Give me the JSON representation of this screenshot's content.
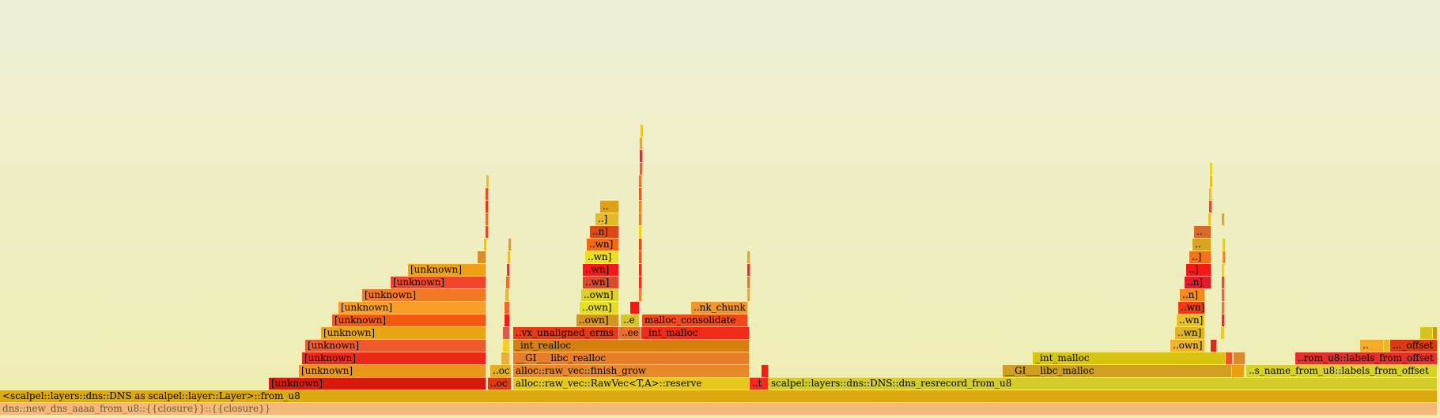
{
  "chart_data": {
    "type": "flamegraph",
    "total_samples": 1821,
    "frames": [
      {
        "label": "dns::new_dns_aaaa_from_u8::{{closure}}::{{closure}}",
        "start": 0,
        "width": 1818,
        "depth": 0,
        "color": "#f4b87a"
      },
      {
        "label": "<scalpel::layers::dns::DNS as scalpel::layer::Layer>::from_u8",
        "start": 0,
        "width": 1818,
        "depth": 1,
        "color": "#dcaa0e"
      },
      {
        "label": "[unknown]",
        "start": 340,
        "width": 275,
        "depth": 2,
        "color": "#d61a0e"
      },
      {
        "label": "..oc",
        "start": 617,
        "width": 30,
        "depth": 2,
        "color": "#e03a12"
      },
      {
        "label": "alloc::raw_vec::RawVec<T,A>::reserve",
        "start": 649,
        "width": 299,
        "depth": 2,
        "color": "#e4c81c"
      },
      {
        "label": "..t",
        "start": 948,
        "width": 24,
        "depth": 2,
        "color": "#f42a1a"
      },
      {
        "label": "scalpel::layers::dns::DNS::dns_resrecord_from_u8",
        "start": 972,
        "width": 846,
        "depth": 2,
        "color": "#d4cc2a"
      },
      {
        "label": "[unknown]",
        "start": 378,
        "width": 237,
        "depth": 3,
        "color": "#e8991a"
      },
      {
        "label": "..oc",
        "start": 620,
        "width": 27,
        "depth": 3,
        "color": "#e4b020"
      },
      {
        "label": "alloc::raw_vec::finish_grow",
        "start": 649,
        "width": 299,
        "depth": 3,
        "color": "#e8882a"
      },
      {
        "label": "",
        "start": 963,
        "width": 9,
        "depth": 3,
        "color": "#f21e1a"
      },
      {
        "label": "__GI___libc_malloc",
        "start": 1268,
        "width": 290,
        "depth": 3,
        "color": "#cfa020"
      },
      {
        "label": "",
        "start": 1558,
        "width": 16,
        "depth": 3,
        "color": "#e8a010"
      },
      {
        "label": "..s_name_from_u8::labels_from_offset",
        "start": 1576,
        "width": 242,
        "depth": 3,
        "color": "#d8d226"
      },
      {
        "label": "[unknown]",
        "start": 382,
        "width": 233,
        "depth": 4,
        "color": "#ee2818"
      },
      {
        "label": "",
        "start": 634,
        "width": 11,
        "depth": 4,
        "color": "#e8b038"
      },
      {
        "label": "__GI___libc_realloc",
        "start": 649,
        "width": 299,
        "depth": 4,
        "color": "#e87e2c"
      },
      {
        "label": "_int_malloc",
        "start": 1306,
        "width": 244,
        "depth": 4,
        "color": "#d6c410"
      },
      {
        "label": "",
        "start": 1550,
        "width": 9,
        "depth": 4,
        "color": "#f05222"
      },
      {
        "label": "",
        "start": 1560,
        "width": 15,
        "depth": 4,
        "color": "#d88a2c"
      },
      {
        "label": "..rom_u8::labels_from_offset",
        "start": 1638,
        "width": 180,
        "depth": 4,
        "color": "#e4302a"
      },
      {
        "label": "[unknown]",
        "start": 386,
        "width": 229,
        "depth": 5,
        "color": "#ec5a2e"
      },
      {
        "label": "",
        "start": 636,
        "width": 9,
        "depth": 5,
        "color": "#f0d020"
      },
      {
        "label": "_int_realloc",
        "start": 649,
        "width": 299,
        "depth": 5,
        "color": "#d48010"
      },
      {
        "label": "..own]",
        "start": 1480,
        "width": 44,
        "depth": 5,
        "color": "#f0b428"
      },
      {
        "label": "",
        "start": 1531,
        "width": 8,
        "depth": 5,
        "color": "#e02818"
      },
      {
        "label": "..",
        "start": 1720,
        "width": 30,
        "depth": 5,
        "color": "#f4ac28"
      },
      {
        "label": "",
        "start": 1750,
        "width": 8,
        "depth": 5,
        "color": "#e0be20"
      },
      {
        "label": "..._offset",
        "start": 1758,
        "width": 60,
        "depth": 5,
        "color": "#da3a10"
      },
      {
        "label": "[unknown]",
        "start": 406,
        "width": 209,
        "depth": 6,
        "color": "#e6a812"
      },
      {
        "label": "",
        "start": 636,
        "width": 9,
        "depth": 6,
        "color": "#d85e4a"
      },
      {
        "label": "..vx_unaligned_erms",
        "start": 649,
        "width": 134,
        "depth": 6,
        "color": "#e83a14"
      },
      {
        "label": "..ee",
        "start": 783,
        "width": 28,
        "depth": 6,
        "color": "#ec6e2a"
      },
      {
        "label": "_int_malloc",
        "start": 811,
        "width": 137,
        "depth": 6,
        "color": "#f22a1a"
      },
      {
        "label": "..wn]",
        "start": 1486,
        "width": 38,
        "depth": 6,
        "color": "#e0b422"
      },
      {
        "label": "",
        "start": 1544,
        "width": 5,
        "depth": 6,
        "color": "#ecc82c"
      },
      {
        "label": "",
        "start": 1796,
        "width": 16,
        "depth": 6,
        "color": "#d4c41c"
      },
      {
        "label": "",
        "start": 1812,
        "width": 6,
        "depth": 6,
        "color": "#c89a10"
      },
      {
        "label": "[unknown]",
        "start": 420,
        "width": 195,
        "depth": 7,
        "color": "#f45a12"
      },
      {
        "label": "",
        "start": 638,
        "width": 7,
        "depth": 7,
        "color": "#f41a1a"
      },
      {
        "label": "..own]",
        "start": 729,
        "width": 54,
        "depth": 7,
        "color": "#d69420"
      },
      {
        "label": "..e",
        "start": 785,
        "width": 24,
        "depth": 7,
        "color": "#d6c42c"
      },
      {
        "label": "malloc_consolidate",
        "start": 812,
        "width": 134,
        "depth": 7,
        "color": "#ee4a1c"
      },
      {
        "label": "..wn]",
        "start": 1488,
        "width": 36,
        "depth": 7,
        "color": "#e8c224"
      },
      {
        "label": "",
        "start": 1545,
        "width": 4,
        "depth": 7,
        "color": "#f02a1a"
      },
      {
        "label": "[unknown]",
        "start": 428,
        "width": 187,
        "depth": 8,
        "color": "#f8a026"
      },
      {
        "label": "",
        "start": 638,
        "width": 7,
        "depth": 8,
        "color": "#f06a24"
      },
      {
        "label": "..own]",
        "start": 733,
        "width": 50,
        "depth": 8,
        "color": "#e6de24"
      },
      {
        "label": "",
        "start": 797,
        "width": 12,
        "depth": 8,
        "color": "#f21a12"
      },
      {
        "label": "..nk_chunk",
        "start": 874,
        "width": 72,
        "depth": 8,
        "color": "#f0962c"
      },
      {
        "label": "..wn]",
        "start": 1490,
        "width": 34,
        "depth": 8,
        "color": "#ec3c14"
      },
      {
        "label": "",
        "start": 1545,
        "width": 4,
        "depth": 8,
        "color": "#e67a2a"
      },
      {
        "label": "[unknown]",
        "start": 458,
        "width": 157,
        "depth": 9,
        "color": "#f47a22"
      },
      {
        "label": "",
        "start": 639,
        "width": 5,
        "depth": 9,
        "color": "#e8b832"
      },
      {
        "label": "..own]",
        "start": 735,
        "width": 48,
        "depth": 9,
        "color": "#dcd024"
      },
      {
        "label": "",
        "start": 808,
        "width": 3,
        "depth": 9,
        "color": "#f0802a"
      },
      {
        "label": "",
        "start": 945,
        "width": 3,
        "depth": 9,
        "color": "#e4aa2a"
      },
      {
        "label": "..n]",
        "start": 1492,
        "width": 32,
        "depth": 9,
        "color": "#f48a1a"
      },
      {
        "label": "",
        "start": 1545,
        "width": 4,
        "depth": 9,
        "color": "#e86a2a"
      },
      {
        "label": "[unknown]",
        "start": 494,
        "width": 121,
        "depth": 10,
        "color": "#f0462c"
      },
      {
        "label": "",
        "start": 640,
        "width": 5,
        "depth": 10,
        "color": "#e67226"
      },
      {
        "label": "..wn]",
        "start": 737,
        "width": 46,
        "depth": 10,
        "color": "#d84a2a"
      },
      {
        "label": "",
        "start": 808,
        "width": 3,
        "depth": 10,
        "color": "#f42a1a"
      },
      {
        "label": "",
        "start": 945,
        "width": 3,
        "depth": 10,
        "color": "#e47a26"
      },
      {
        "label": "..n]",
        "start": 1498,
        "width": 34,
        "depth": 10,
        "color": "#e01c2a"
      },
      {
        "label": "",
        "start": 1545,
        "width": 4,
        "depth": 10,
        "color": "#e4501a"
      },
      {
        "label": "[unknown]",
        "start": 516,
        "width": 99,
        "depth": 11,
        "color": "#f0a014"
      },
      {
        "label": "",
        "start": 641,
        "width": 4,
        "depth": 11,
        "color": "#e4382a"
      },
      {
        "label": "..wn]",
        "start": 737,
        "width": 46,
        "depth": 11,
        "color": "#f41a1a"
      },
      {
        "label": "",
        "start": 808,
        "width": 3,
        "depth": 11,
        "color": "#e2301a"
      },
      {
        "label": "",
        "start": 945,
        "width": 3,
        "depth": 11,
        "color": "#f02a1a"
      },
      {
        "label": "..]",
        "start": 1500,
        "width": 32,
        "depth": 11,
        "color": "#f21a18"
      },
      {
        "label": "",
        "start": 1545,
        "width": 4,
        "depth": 11,
        "color": "#f0d020"
      },
      {
        "label": "",
        "start": 604,
        "width": 11,
        "depth": 12,
        "color": "#d88e2a"
      },
      {
        "label": "",
        "start": 642,
        "width": 3,
        "depth": 12,
        "color": "#e8c032"
      },
      {
        "label": "..wn]",
        "start": 740,
        "width": 43,
        "depth": 12,
        "color": "#e8e024"
      },
      {
        "label": "",
        "start": 808,
        "width": 3,
        "depth": 12,
        "color": "#e05a1a"
      },
      {
        "label": "",
        "start": 945,
        "width": 3,
        "depth": 12,
        "color": "#e0a82a"
      },
      {
        "label": "..]",
        "start": 1504,
        "width": 28,
        "depth": 12,
        "color": "#f2741a"
      },
      {
        "label": "",
        "start": 1546,
        "width": 3,
        "depth": 12,
        "color": "#f08a2a"
      },
      {
        "label": "",
        "start": 612,
        "width": 3,
        "depth": 13,
        "color": "#e4c82a"
      },
      {
        "label": "",
        "start": 643,
        "width": 2,
        "depth": 13,
        "color": "#e89a2a"
      },
      {
        "label": "..wn]",
        "start": 742,
        "width": 41,
        "depth": 13,
        "color": "#ee6a14"
      },
      {
        "label": "",
        "start": 808,
        "width": 3,
        "depth": 13,
        "color": "#e8481a"
      },
      {
        "label": "..",
        "start": 1508,
        "width": 24,
        "depth": 13,
        "color": "#d8a420"
      },
      {
        "label": "",
        "start": 1546,
        "width": 3,
        "depth": 13,
        "color": "#e2d02a"
      },
      {
        "label": "",
        "start": 614,
        "width": 2,
        "depth": 14,
        "color": "#e84a2a"
      },
      {
        "label": "..n]",
        "start": 746,
        "width": 37,
        "depth": 14,
        "color": "#dc4a14"
      },
      {
        "label": "",
        "start": 808,
        "width": 3,
        "depth": 14,
        "color": "#f0d41a"
      },
      {
        "label": "..",
        "start": 1510,
        "width": 22,
        "depth": 14,
        "color": "#d86a2a"
      },
      {
        "label": "",
        "start": 614,
        "width": 2,
        "depth": 15,
        "color": "#e4742a"
      },
      {
        "label": "..]",
        "start": 753,
        "width": 30,
        "depth": 15,
        "color": "#e2ba2a"
      },
      {
        "label": "",
        "start": 808,
        "width": 3,
        "depth": 15,
        "color": "#e0802a"
      },
      {
        "label": "",
        "start": 1528,
        "width": 4,
        "depth": 15,
        "color": "#e4c82a"
      },
      {
        "label": "",
        "start": 1545,
        "width": 3,
        "depth": 15,
        "color": "#e0a82a"
      },
      {
        "label": "",
        "start": 614,
        "width": 2,
        "depth": 16,
        "color": "#e43a1a"
      },
      {
        "label": "..",
        "start": 759,
        "width": 24,
        "depth": 16,
        "color": "#e0a016"
      },
      {
        "label": "",
        "start": 808,
        "width": 3,
        "depth": 16,
        "color": "#e8842a"
      },
      {
        "label": "",
        "start": 1529,
        "width": 3,
        "depth": 16,
        "color": "#f0481a"
      },
      {
        "label": "",
        "start": 614,
        "width": 2,
        "depth": 17,
        "color": "#e8502a"
      },
      {
        "label": "",
        "start": 808,
        "width": 3,
        "depth": 17,
        "color": "#e85a2a"
      },
      {
        "label": "",
        "start": 1529,
        "width": 3,
        "depth": 17,
        "color": "#e8c42a"
      },
      {
        "label": "",
        "start": 615,
        "width": 1,
        "depth": 18,
        "color": "#e8c02a"
      },
      {
        "label": "",
        "start": 808,
        "width": 3,
        "depth": 18,
        "color": "#e0782a"
      },
      {
        "label": "",
        "start": 1530,
        "width": 2,
        "depth": 18,
        "color": "#e0c42a"
      },
      {
        "label": "",
        "start": 809,
        "width": 2,
        "depth": 19,
        "color": "#e8602a"
      },
      {
        "label": "",
        "start": 1530,
        "width": 2,
        "depth": 19,
        "color": "#e8d42a"
      },
      {
        "label": "",
        "start": 809,
        "width": 2,
        "depth": 20,
        "color": "#f0282a"
      },
      {
        "label": "",
        "start": 809,
        "width": 2,
        "depth": 21,
        "color": "#e6a82a"
      },
      {
        "label": "",
        "start": 810,
        "width": 1,
        "depth": 22,
        "color": "#e8c82a"
      }
    ]
  }
}
